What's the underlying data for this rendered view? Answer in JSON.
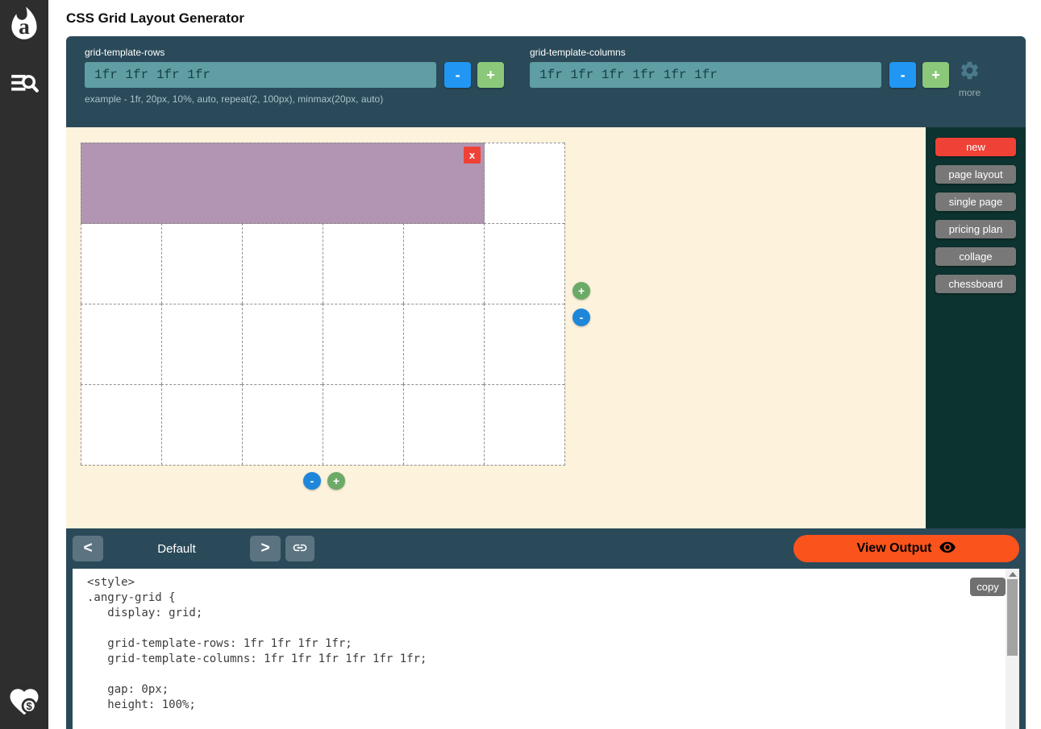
{
  "colors": {
    "rail_bg": "#2e2e2e",
    "toolbar_bg": "#2a4a59",
    "input_bg": "#5f9ea3",
    "accent_blue": "#2196f3",
    "accent_green": "#8cc87a",
    "circle_green": "#6caa67",
    "circle_blue": "#1f87da",
    "canvas_bg": "#fdf2dc",
    "presets_panel_bg": "#0c332f",
    "grid_item_purple": "#b295b2",
    "accent_red": "#ef4136",
    "accent_orange": "#fb531c",
    "preset_gray": "#787878",
    "nav_button_gray": "#5c7482"
  },
  "rail_icons": {
    "logo": "angrytools-flame-logo",
    "menu": "menu-search-icon",
    "donate": "heart-dollar-icon"
  },
  "app": {
    "title": "CSS Grid Layout Generator"
  },
  "toolbar": {
    "rows": {
      "label": "grid-template-rows",
      "value": "1fr 1fr 1fr 1fr"
    },
    "columns": {
      "label": "grid-template-columns",
      "value": "1fr 1fr 1fr 1fr 1fr 1fr"
    },
    "hint": "example - 1fr, 20px, 10%, auto, repeat(2, 100px), minmax(20px, auto)",
    "minus_label": "-",
    "plus_label": "+",
    "more_label": "more"
  },
  "preview": {
    "grid": {
      "rows": 4,
      "columns": 6
    },
    "item": {
      "remove_label": "x",
      "col_span": 5,
      "row_span": 1
    },
    "row_controls": {
      "plus": "+",
      "minus": "-"
    },
    "column_controls": {
      "minus": "-",
      "plus": "+"
    }
  },
  "presets": {
    "items": [
      {
        "label": "new"
      },
      {
        "label": "page layout"
      },
      {
        "label": "single page"
      },
      {
        "label": "pricing plan"
      },
      {
        "label": "collage"
      },
      {
        "label": "chessboard"
      }
    ]
  },
  "pager": {
    "prev_label": "<",
    "preset_name": "Default",
    "next_label": ">",
    "view_output_label": "View Output"
  },
  "code": {
    "copy_label": "copy",
    "lines": [
      "<style>",
      ".angry-grid {",
      "   display: grid;",
      "",
      "   grid-template-rows: 1fr 1fr 1fr 1fr;",
      "   grid-template-columns: 1fr 1fr 1fr 1fr 1fr 1fr;",
      "",
      "   gap: 0px;",
      "   height: 100%;"
    ]
  }
}
